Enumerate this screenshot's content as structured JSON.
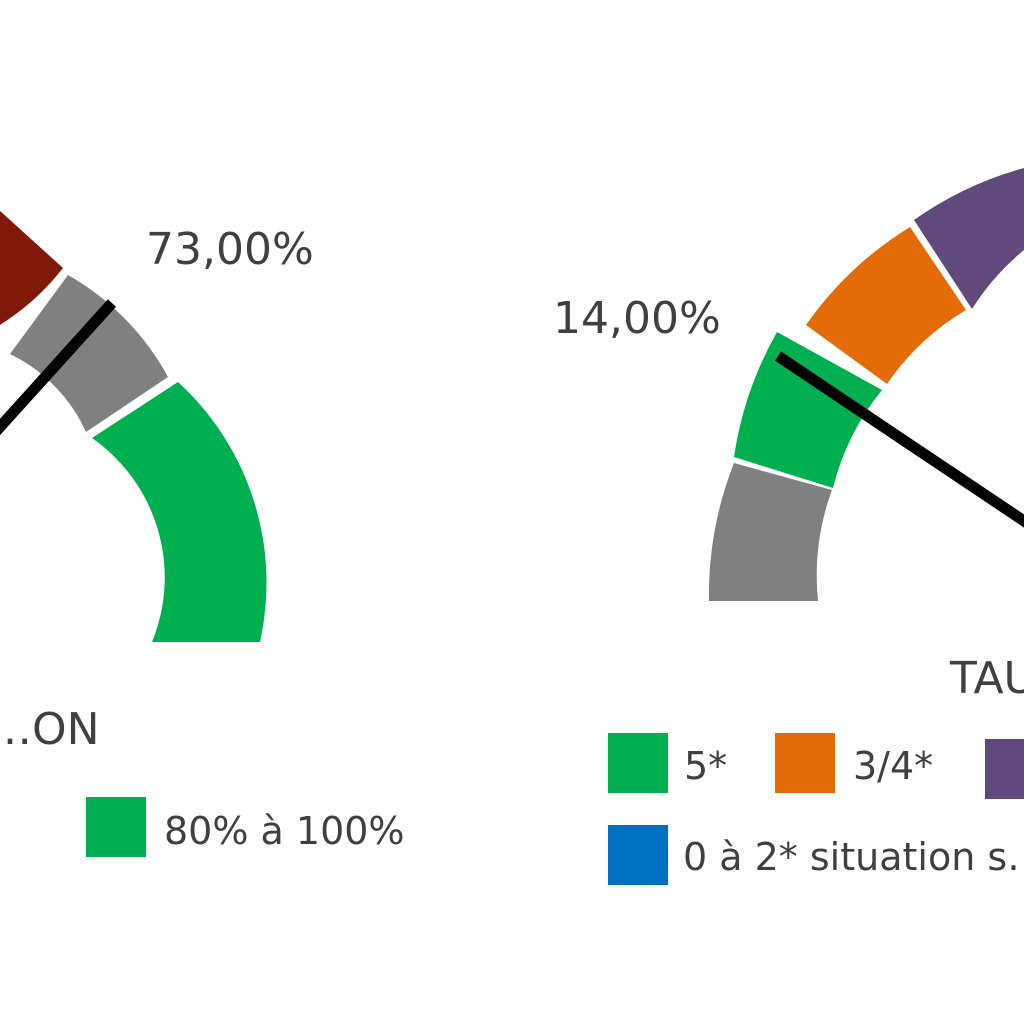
{
  "chart_data": [
    {
      "type": "gauge",
      "title": "…ON",
      "value_label": "73,00%",
      "value": 73,
      "range": [
        0,
        100
      ],
      "segments": [
        {
          "color": "#7F1A0A"
        },
        {
          "color": "#808080"
        },
        {
          "color": "#00B050",
          "label": "80% à 100%"
        }
      ],
      "legend": [
        {
          "label": "80% à 100%",
          "color": "#00B050"
        }
      ]
    },
    {
      "type": "gauge",
      "title": "TAU…",
      "value_label": "14,00%",
      "value": 14,
      "range": [
        0,
        100
      ],
      "segments": [
        {
          "color": "#808080"
        },
        {
          "color": "#00B050",
          "label": "5*"
        },
        {
          "color": "#E36C09",
          "label": "3/4*"
        },
        {
          "color": "#604A7B"
        }
      ],
      "legend": [
        {
          "label": "5*",
          "color": "#00B050"
        },
        {
          "label": "3/4*",
          "color": "#E36C09"
        },
        {
          "label": "",
          "color": "#604A7B"
        },
        {
          "label": "0 à 2* situation s…",
          "color": "#0070C0"
        }
      ]
    }
  ]
}
